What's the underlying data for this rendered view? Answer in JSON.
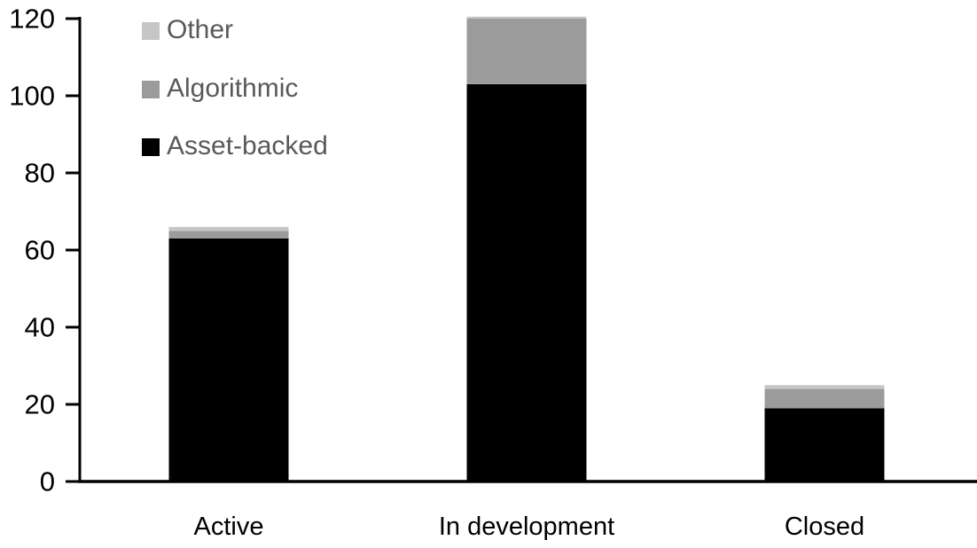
{
  "chart_data": {
    "type": "bar",
    "stacked": true,
    "title": "",
    "xlabel": "",
    "ylabel": "",
    "categories": [
      "Active",
      "In development",
      "Closed"
    ],
    "series": [
      {
        "name": "Asset-backed",
        "color": "#000000",
        "values": [
          63,
          103,
          19
        ]
      },
      {
        "name": "Algorithmic",
        "color": "#9b9b9b",
        "values": [
          2,
          17,
          5
        ]
      },
      {
        "name": "Other",
        "color": "#c6c6c6",
        "values": [
          1,
          0.5,
          1
        ]
      }
    ],
    "ylim": [
      0,
      120
    ],
    "yticks": [
      0,
      20,
      40,
      60,
      80,
      100,
      120
    ],
    "grid": false,
    "legend_position": "top-left-inside",
    "legend_order": [
      "Other",
      "Algorithmic",
      "Asset-backed"
    ],
    "colors": {
      "axis": "#000000",
      "tick_label": "#000000",
      "category_label": "#000000",
      "legend_text": "#595959",
      "background": "#ffffff"
    }
  }
}
